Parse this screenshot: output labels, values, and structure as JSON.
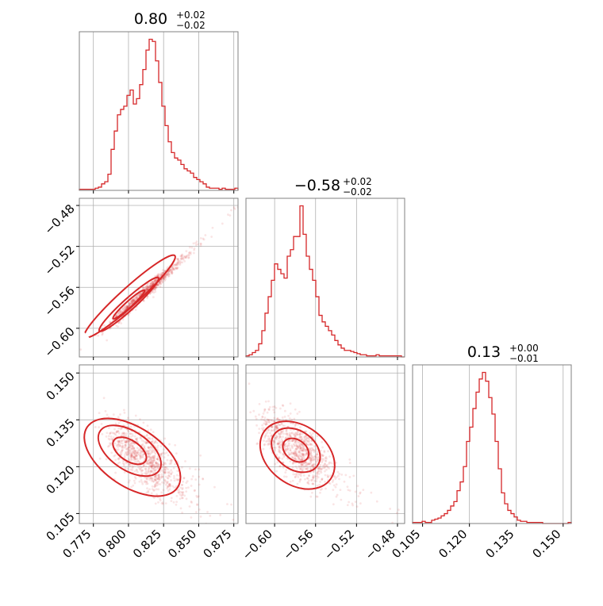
{
  "chart_data": {
    "type": "corner",
    "color": "#d62728",
    "grid": true,
    "parameters": [
      {
        "name": "p0",
        "summary": {
          "median": "0.80",
          "plus": "+0.02",
          "minus": "−0.02"
        },
        "range": [
          0.765,
          0.878
        ],
        "ticks": [
          0.775,
          0.8,
          0.825,
          0.85,
          0.875
        ],
        "tick_labels": [
          "0.775",
          "0.800",
          "0.825",
          "0.850",
          "0.875"
        ],
        "hist": {
          "start": 0.765,
          "end": 0.878,
          "counts": [
            1,
            1,
            1,
            1,
            1,
            2,
            3,
            6,
            8,
            15,
            38,
            55,
            70,
            75,
            78,
            88,
            93,
            80,
            85,
            98,
            112,
            130,
            140,
            138,
            120,
            100,
            78,
            60,
            45,
            35,
            30,
            28,
            24,
            20,
            18,
            16,
            12,
            10,
            8,
            6,
            3,
            2,
            2,
            2,
            1,
            2,
            1,
            1,
            1,
            2
          ]
        }
      },
      {
        "name": "p1",
        "summary": {
          "median": "−0.58",
          "plus": "+0.02",
          "minus": "−0.02"
        },
        "range": [
          -0.628,
          -0.473
        ],
        "ticks": [
          -0.6,
          -0.56,
          -0.52,
          -0.48
        ],
        "tick_labels": [
          "−0.60",
          "−0.56",
          "−0.52",
          "−0.48"
        ],
        "hist": {
          "start": -0.628,
          "end": -0.473,
          "counts": [
            1,
            2,
            4,
            6,
            12,
            24,
            40,
            55,
            70,
            85,
            80,
            76,
            72,
            92,
            98,
            110,
            110,
            138,
            112,
            92,
            80,
            70,
            55,
            38,
            32,
            28,
            24,
            20,
            15,
            11,
            8,
            6,
            6,
            5,
            4,
            3,
            2,
            2,
            1,
            1,
            1,
            2,
            1,
            1,
            1,
            1,
            1,
            1,
            1,
            0
          ]
        }
      },
      {
        "name": "p2",
        "summary": {
          "median": "0.13",
          "plus": "+0.00",
          "minus": "−0.01"
        },
        "range": [
          0.1018,
          0.1526
        ],
        "ticks": [
          0.105,
          0.12,
          0.135,
          0.15
        ],
        "tick_labels": [
          "0.105",
          "0.120",
          "0.135",
          "0.150"
        ],
        "hist": {
          "start": 0.1018,
          "end": 0.1526,
          "counts": [
            1,
            1,
            1,
            2,
            1,
            1,
            3,
            4,
            5,
            7,
            9,
            12,
            16,
            20,
            30,
            38,
            52,
            75,
            88,
            105,
            120,
            132,
            138,
            130,
            115,
            100,
            75,
            50,
            28,
            18,
            12,
            9,
            6,
            3,
            2,
            2,
            1,
            1,
            1,
            1,
            1,
            0,
            0,
            0,
            0,
            0,
            0,
            0,
            0,
            1
          ]
        }
      }
    ],
    "pairs": [
      {
        "x_param": 0,
        "y_param": 1,
        "slope": 1.24,
        "scatter": 0.003
      },
      {
        "x_param": 0,
        "y_param": 2,
        "slope": -0.3,
        "scatter": 0.0045
      },
      {
        "x_param": 1,
        "y_param": 2,
        "slope": -0.24,
        "scatter": 0.0045
      }
    ]
  }
}
